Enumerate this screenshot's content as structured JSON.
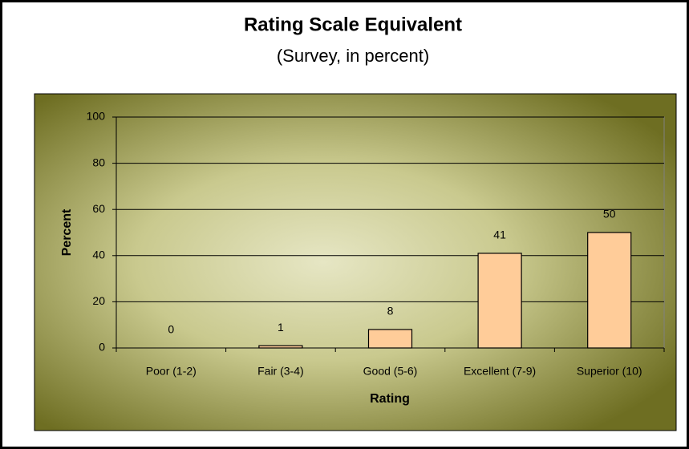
{
  "chart_data": {
    "type": "bar",
    "title": "Rating Scale Equivalent",
    "subtitle": "(Survey, in percent)",
    "x_label": "Rating",
    "y_label": "Percent",
    "categories": [
      "Poor (1-2)",
      "Fair (3-4)",
      "Good (5-6)",
      "Excellent (7-9)",
      "Superior (10)"
    ],
    "values": [
      0,
      1,
      8,
      41,
      50
    ],
    "color": "#ffcc99",
    "ylim": [
      0,
      100
    ],
    "yticks": [
      0,
      20,
      40,
      60,
      80,
      100
    ],
    "grid": true
  }
}
